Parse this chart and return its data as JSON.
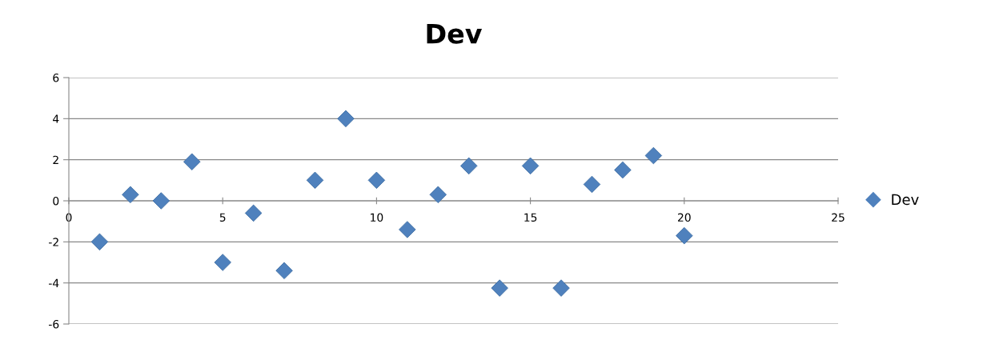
{
  "chart_data": {
    "type": "scatter",
    "title": "Dev",
    "series": [
      {
        "name": "Dev",
        "color": "#4f81bd",
        "x": [
          1,
          2,
          3,
          4,
          5,
          6,
          7,
          8,
          9,
          10,
          11,
          12,
          13,
          14,
          15,
          16,
          17,
          18,
          19,
          20
        ],
        "values": [
          -2,
          0.3,
          0,
          1.9,
          -3,
          -0.6,
          -3.4,
          1,
          4,
          1,
          -1.4,
          0.3,
          1.7,
          -4.25,
          1.7,
          -4.25,
          0.8,
          1.5,
          2.2,
          -1.7
        ]
      }
    ],
    "xlim": [
      0,
      25
    ],
    "xticks": [
      0,
      5,
      10,
      15,
      20,
      25
    ],
    "ylim": [
      -6,
      6
    ],
    "yticks": [
      -6,
      -4,
      -2,
      0,
      2,
      4,
      6
    ],
    "grid": "y",
    "legend": "right",
    "marker": "diamond"
  }
}
